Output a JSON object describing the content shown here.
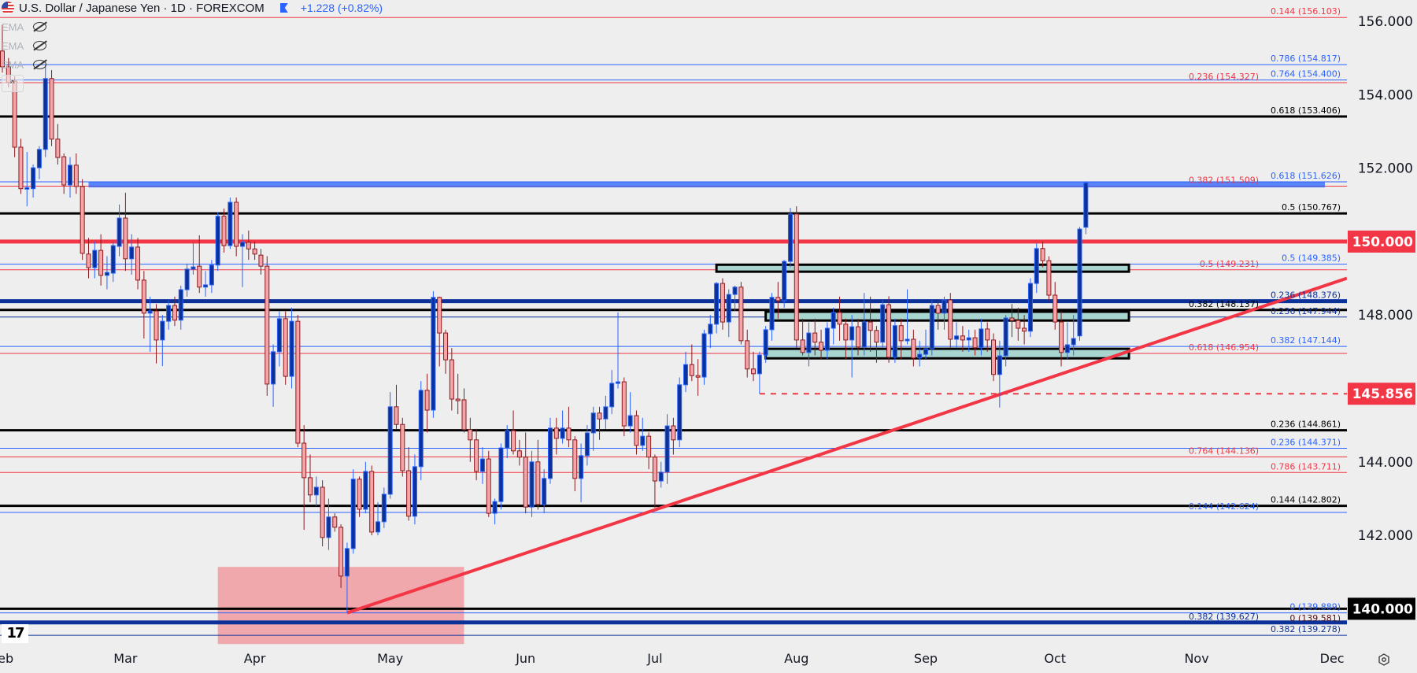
{
  "header": {
    "title": "U.S. Dollar / Japanese Yen · 1D · FOREXCOM",
    "change": "+1.228 (+0.82%)",
    "flag_icon": "us-jp-flag-icon",
    "marker_icon": "flag-marker-icon"
  },
  "legend": [
    {
      "label": "EMA",
      "icon": "eye-off-icon"
    },
    {
      "label": "EMA",
      "icon": "eye-off-icon"
    },
    {
      "label": "SMA",
      "icon": "eye-off-icon"
    }
  ],
  "collapse_label": "^",
  "logo_text": "TV",
  "chart_data": {
    "type": "candlestick",
    "title": "U.S. Dollar / Japanese Yen · 1D · FOREXCOM",
    "colors": {
      "up_fill": "#0c3299",
      "up_border": "#2962ff",
      "down_fill": "#f5a5a7",
      "down_border": "#8b1a1f",
      "background": "#eeeeee"
    },
    "ylim": [
      138.7,
      156.6
    ],
    "x_ticks": [
      "Feb",
      "Mar",
      "Apr",
      "May",
      "Jun",
      "Jul",
      "Aug",
      "Sep",
      "Oct",
      "Nov",
      "Dec"
    ],
    "y_ticks": [
      "156.000",
      "154.000",
      "152.000",
      "148.000",
      "144.000",
      "142.000"
    ],
    "price_tags": [
      {
        "value": "150.000",
        "color": "#f23645"
      },
      {
        "value": "145.856",
        "color": "#f23645"
      },
      {
        "value": "140.000",
        "color": "#000000"
      }
    ],
    "candles_ohlc": [
      [
        155.19,
        155.9,
        154.6,
        154.76
      ],
      [
        154.76,
        155.0,
        154.2,
        154.33
      ],
      [
        154.37,
        154.5,
        152.3,
        152.57
      ],
      [
        152.57,
        152.8,
        151.3,
        151.44
      ],
      [
        151.44,
        152.44,
        150.96,
        151.47
      ],
      [
        151.44,
        152.1,
        151.2,
        152.01
      ],
      [
        152.01,
        152.6,
        151.7,
        152.51
      ],
      [
        152.51,
        154.82,
        152.3,
        154.44
      ],
      [
        154.44,
        154.67,
        152.6,
        152.79
      ],
      [
        152.79,
        153.2,
        152.1,
        152.29
      ],
      [
        152.31,
        152.4,
        151.3,
        151.54
      ],
      [
        151.54,
        152.3,
        151.2,
        152.08
      ],
      [
        152.08,
        152.4,
        151.3,
        151.5
      ],
      [
        151.5,
        151.7,
        149.5,
        149.68
      ],
      [
        149.66,
        150.1,
        149.0,
        149.29
      ],
      [
        149.29,
        150.0,
        149.0,
        149.76
      ],
      [
        149.76,
        150.2,
        148.8,
        149.08
      ],
      [
        149.08,
        149.6,
        148.7,
        149.16
      ],
      [
        149.14,
        150.0,
        148.9,
        149.89
      ],
      [
        149.87,
        151.01,
        149.6,
        150.64
      ],
      [
        150.64,
        151.33,
        149.2,
        149.53
      ],
      [
        149.53,
        150.2,
        149.1,
        149.85
      ],
      [
        149.85,
        150.1,
        148.7,
        148.95
      ],
      [
        148.95,
        149.2,
        147.36,
        148.05
      ],
      [
        148.05,
        148.5,
        147.0,
        148.11
      ],
      [
        148.11,
        148.3,
        146.68,
        147.32
      ],
      [
        147.32,
        148.0,
        146.61,
        147.83
      ],
      [
        147.83,
        148.4,
        147.6,
        148.26
      ],
      [
        148.26,
        148.5,
        147.7,
        147.86
      ],
      [
        147.86,
        148.8,
        147.6,
        148.69
      ],
      [
        148.69,
        149.4,
        148.5,
        149.25
      ],
      [
        149.25,
        149.98,
        149.1,
        149.31
      ],
      [
        149.33,
        150.17,
        148.6,
        148.76
      ],
      [
        148.76,
        149.2,
        148.5,
        148.82
      ],
      [
        148.82,
        149.5,
        148.6,
        149.36
      ],
      [
        149.36,
        150.8,
        149.2,
        150.69
      ],
      [
        150.69,
        150.9,
        149.7,
        149.89
      ],
      [
        149.89,
        151.2,
        149.8,
        151.07
      ],
      [
        151.07,
        151.2,
        149.6,
        149.87
      ],
      [
        149.87,
        150.2,
        148.76,
        149.98
      ],
      [
        149.98,
        150.3,
        149.5,
        149.8
      ],
      [
        149.8,
        150.0,
        149.5,
        149.66
      ],
      [
        149.63,
        149.8,
        149.1,
        149.33
      ],
      [
        149.33,
        149.6,
        145.8,
        146.12
      ],
      [
        146.12,
        147.2,
        145.5,
        147.0
      ],
      [
        147.0,
        148.1,
        146.6,
        147.9
      ],
      [
        147.9,
        148.1,
        146.1,
        146.33
      ],
      [
        146.33,
        148.2,
        146.0,
        147.83
      ],
      [
        147.83,
        148.0,
        144.4,
        144.51
      ],
      [
        144.51,
        145.0,
        142.15,
        143.57
      ],
      [
        143.57,
        144.2,
        142.9,
        143.1
      ],
      [
        143.1,
        143.6,
        142.8,
        143.31
      ],
      [
        143.31,
        143.5,
        141.7,
        141.94
      ],
      [
        141.94,
        143.0,
        141.6,
        142.5
      ],
      [
        142.5,
        142.6,
        142.1,
        142.22
      ],
      [
        142.22,
        142.3,
        140.57,
        140.89
      ],
      [
        140.89,
        141.8,
        139.89,
        141.64
      ],
      [
        141.64,
        143.8,
        141.5,
        143.53
      ],
      [
        143.53,
        143.6,
        142.5,
        142.71
      ],
      [
        142.71,
        144.0,
        142.6,
        143.74
      ],
      [
        143.74,
        143.9,
        142.0,
        142.09
      ],
      [
        142.09,
        142.9,
        142.0,
        142.37
      ],
      [
        142.37,
        143.3,
        142.2,
        143.12
      ],
      [
        143.12,
        145.9,
        143.0,
        145.5
      ],
      [
        145.5,
        146.1,
        144.9,
        145.02
      ],
      [
        145.02,
        145.2,
        143.6,
        143.76
      ],
      [
        143.76,
        144.4,
        142.4,
        142.52
      ],
      [
        142.52,
        144.2,
        142.3,
        143.87
      ],
      [
        143.87,
        146.2,
        143.5,
        145.95
      ],
      [
        145.95,
        146.4,
        144.8,
        145.41
      ],
      [
        145.41,
        148.65,
        145.2,
        148.48
      ],
      [
        148.48,
        148.5,
        146.6,
        147.51
      ],
      [
        147.51,
        147.6,
        146.4,
        146.78
      ],
      [
        146.78,
        147.1,
        145.4,
        145.71
      ],
      [
        145.71,
        146.4,
        145.3,
        145.67
      ],
      [
        145.69,
        146.0,
        144.8,
        144.88
      ],
      [
        144.88,
        145.2,
        144.0,
        144.6
      ],
      [
        144.6,
        144.9,
        143.5,
        143.74
      ],
      [
        143.74,
        144.4,
        143.4,
        144.08
      ],
      [
        144.08,
        144.3,
        142.5,
        142.6
      ],
      [
        142.6,
        143.0,
        142.3,
        142.92
      ],
      [
        142.92,
        144.5,
        142.7,
        144.38
      ],
      [
        144.38,
        145.0,
        144.1,
        144.85
      ],
      [
        144.85,
        145.4,
        144.2,
        144.3
      ],
      [
        144.3,
        144.6,
        143.9,
        144.13
      ],
      [
        144.13,
        144.8,
        142.6,
        142.77
      ],
      [
        142.77,
        144.3,
        142.5,
        144.0
      ],
      [
        144.0,
        144.6,
        142.7,
        142.84
      ],
      [
        142.84,
        143.8,
        142.6,
        143.55
      ],
      [
        143.55,
        145.2,
        143.4,
        144.92
      ],
      [
        144.92,
        145.2,
        144.2,
        144.64
      ],
      [
        144.64,
        145.4,
        144.5,
        144.92
      ],
      [
        144.92,
        145.5,
        144.4,
        144.6
      ],
      [
        144.6,
        144.7,
        143.2,
        143.55
      ],
      [
        143.55,
        144.5,
        142.9,
        144.17
      ],
      [
        144.17,
        145.0,
        143.9,
        144.79
      ],
      [
        144.79,
        145.5,
        144.3,
        145.33
      ],
      [
        145.33,
        145.5,
        144.6,
        145.17
      ],
      [
        145.17,
        145.8,
        144.9,
        145.5
      ],
      [
        145.5,
        146.5,
        145.3,
        146.14
      ],
      [
        146.14,
        148.07,
        146.0,
        146.18
      ],
      [
        146.18,
        146.3,
        144.7,
        144.98
      ],
      [
        144.98,
        145.9,
        144.8,
        145.26
      ],
      [
        145.26,
        145.4,
        144.2,
        144.45
      ],
      [
        144.45,
        145.2,
        144.3,
        144.7
      ],
      [
        144.7,
        144.8,
        143.8,
        144.13
      ],
      [
        144.13,
        144.2,
        142.75,
        143.48
      ],
      [
        143.48,
        144.0,
        143.3,
        143.72
      ],
      [
        143.72,
        145.3,
        143.4,
        144.98
      ],
      [
        144.98,
        145.2,
        144.2,
        144.6
      ],
      [
        144.6,
        146.3,
        144.4,
        146.1
      ],
      [
        146.1,
        147.0,
        145.9,
        146.65
      ],
      [
        146.65,
        147.2,
        146.2,
        146.35
      ],
      [
        146.35,
        146.8,
        145.8,
        146.31
      ],
      [
        146.31,
        147.6,
        146.1,
        147.49
      ],
      [
        147.49,
        148.0,
        147.1,
        147.75
      ],
      [
        147.75,
        148.9,
        147.5,
        148.86
      ],
      [
        148.86,
        149.0,
        147.6,
        147.81
      ],
      [
        147.81,
        148.7,
        147.4,
        148.56
      ],
      [
        148.56,
        148.8,
        148.1,
        148.76
      ],
      [
        148.76,
        148.9,
        147.2,
        147.3
      ],
      [
        147.3,
        147.6,
        146.3,
        146.53
      ],
      [
        146.53,
        147.0,
        146.2,
        146.4
      ],
      [
        146.4,
        147.0,
        145.86,
        146.91
      ],
      [
        146.91,
        147.7,
        146.7,
        147.6
      ],
      [
        147.6,
        148.6,
        147.3,
        148.48
      ],
      [
        148.48,
        148.9,
        147.9,
        148.39
      ],
      [
        148.39,
        149.5,
        148.2,
        149.46
      ],
      [
        149.46,
        150.92,
        149.3,
        150.75
      ],
      [
        150.75,
        150.96,
        147.1,
        147.32
      ],
      [
        147.32,
        147.9,
        146.9,
        146.98
      ],
      [
        146.98,
        147.8,
        146.6,
        147.51
      ],
      [
        147.51,
        147.9,
        146.9,
        147.26
      ],
      [
        147.26,
        147.6,
        146.8,
        147.04
      ],
      [
        147.04,
        147.8,
        146.8,
        147.64
      ],
      [
        147.64,
        148.2,
        147.2,
        148.07
      ],
      [
        148.07,
        148.5,
        147.3,
        147.75
      ],
      [
        147.75,
        147.9,
        146.8,
        147.32
      ],
      [
        147.32,
        148.0,
        146.3,
        147.68
      ],
      [
        147.68,
        147.9,
        146.9,
        147.13
      ],
      [
        147.13,
        148.6,
        146.9,
        147.81
      ],
      [
        147.81,
        148.5,
        147.0,
        147.58
      ],
      [
        147.58,
        147.7,
        146.7,
        147.26
      ],
      [
        147.26,
        148.4,
        147.1,
        148.28
      ],
      [
        148.28,
        148.51,
        146.7,
        146.85
      ],
      [
        146.85,
        147.9,
        146.7,
        147.71
      ],
      [
        147.71,
        147.9,
        146.8,
        147.3
      ],
      [
        147.3,
        148.7,
        147.2,
        147.34
      ],
      [
        147.34,
        147.6,
        146.6,
        146.83
      ],
      [
        146.83,
        147.3,
        146.6,
        146.93
      ],
      [
        146.93,
        147.6,
        146.8,
        147.08
      ],
      [
        147.08,
        148.4,
        146.9,
        148.26
      ],
      [
        148.26,
        148.4,
        147.6,
        148.05
      ],
      [
        148.05,
        148.5,
        147.6,
        148.41
      ],
      [
        148.41,
        148.6,
        147.1,
        147.34
      ],
      [
        147.34,
        147.8,
        147.1,
        147.43
      ],
      [
        147.43,
        147.7,
        147.0,
        147.32
      ],
      [
        147.32,
        147.6,
        147.0,
        147.38
      ],
      [
        147.38,
        147.6,
        146.9,
        147.11
      ],
      [
        147.11,
        147.9,
        146.9,
        147.62
      ],
      [
        147.62,
        147.8,
        147.0,
        147.32
      ],
      [
        147.32,
        147.5,
        146.2,
        146.38
      ],
      [
        146.38,
        147.3,
        145.48,
        146.89
      ],
      [
        146.89,
        148.0,
        146.6,
        147.92
      ],
      [
        147.92,
        148.3,
        147.4,
        147.85
      ],
      [
        147.85,
        148.2,
        147.3,
        147.64
      ],
      [
        147.64,
        148.0,
        147.2,
        147.56
      ],
      [
        147.56,
        149.0,
        147.4,
        148.86
      ],
      [
        148.86,
        149.95,
        148.6,
        149.81
      ],
      [
        149.81,
        150.0,
        149.3,
        149.48
      ],
      [
        149.48,
        149.6,
        148.4,
        148.54
      ],
      [
        148.54,
        148.9,
        147.6,
        147.81
      ],
      [
        147.81,
        148.1,
        146.6,
        146.98
      ],
      [
        146.98,
        147.8,
        146.8,
        147.19
      ],
      [
        147.19,
        148.0,
        146.9,
        147.36
      ],
      [
        147.43,
        150.4,
        147.3,
        150.34
      ],
      [
        150.39,
        151.62,
        150.2,
        151.6
      ]
    ],
    "fib_levels": [
      {
        "price": 156.103,
        "label": "0.144 (156.103)",
        "color": "#f23645",
        "style": "thin"
      },
      {
        "price": 154.817,
        "label": "0.786 (154.817)",
        "color": "#2962ff",
        "style": "thin"
      },
      {
        "price": 154.4,
        "label": "0.764 (154.400)",
        "color": "#2962ff",
        "style": "thin"
      },
      {
        "price": 154.327,
        "label": "0.236 (154.327)",
        "color": "#f23645",
        "style": "thin"
      },
      {
        "price": 153.406,
        "label": "0.618 (153.406)",
        "color": "#000000",
        "style": "thick"
      },
      {
        "price": 151.626,
        "label": "0.618 (151.626)",
        "color": "#2962ff",
        "style": "thin"
      },
      {
        "price": 151.509,
        "label": "0.382 (151.509)",
        "color": "#f23645",
        "style": "thin"
      },
      {
        "price": 150.767,
        "label": "0.5 (150.767)",
        "color": "#000000",
        "style": "thick"
      },
      {
        "price": 149.385,
        "label": "0.5 (149.385)",
        "color": "#2962ff",
        "style": "thin"
      },
      {
        "price": 149.231,
        "label": "0.5 (149.231)",
        "color": "#f23645",
        "style": "thin"
      },
      {
        "price": 148.376,
        "label": "0.236 (148.376)",
        "color": "#0c3299",
        "style": "heavy"
      },
      {
        "price": 148.137,
        "label": "0.382 (148.137)",
        "color": "#000000",
        "style": "thick"
      },
      {
        "price": 147.944,
        "label": "0.236 (147.944)",
        "color": "#0c3299",
        "style": "thin"
      },
      {
        "price": 147.144,
        "label": "0.382 (147.144)",
        "color": "#2962ff",
        "style": "thin"
      },
      {
        "price": 146.954,
        "label": "0.618 (146.954)",
        "color": "#f23645",
        "style": "thin"
      },
      {
        "price": 144.861,
        "label": "0.236 (144.861)",
        "color": "#000000",
        "style": "thick"
      },
      {
        "price": 144.371,
        "label": "0.236 (144.371)",
        "color": "#2962ff",
        "style": "thin"
      },
      {
        "price": 144.136,
        "label": "0.764 (144.136)",
        "color": "#f23645",
        "style": "thin"
      },
      {
        "price": 143.711,
        "label": "0.786 (143.711)",
        "color": "#f23645",
        "style": "thin"
      },
      {
        "price": 142.802,
        "label": "0.144 (142.802)",
        "color": "#000000",
        "style": "thick"
      },
      {
        "price": 142.624,
        "label": "0.144 (142.624)",
        "color": "#2962ff",
        "style": "thin"
      },
      {
        "price": 139.889,
        "label": "0 (139.889)",
        "color": "#2962ff",
        "style": "thin"
      },
      {
        "price": 139.627,
        "label": "0.382 (139.627)",
        "color": "#0c3299",
        "style": "heavy"
      },
      {
        "price": 139.581,
        "label": "0 (139.581)",
        "color": "#5a1010",
        "style": "none"
      },
      {
        "price": 139.278,
        "label": "0.382 (139.278)",
        "color": "#0c3299",
        "style": "thin"
      }
    ],
    "horizontal_lines": [
      {
        "price": 150.0,
        "color": "#f23645",
        "style": "heavy"
      },
      {
        "price": 140.0,
        "color": "#000000",
        "style": "thick"
      }
    ],
    "dashed_line": {
      "price": 145.856,
      "from_bar": 123,
      "color": "#f23645"
    },
    "resistance_band": {
      "price": 151.55,
      "from_bar": 14,
      "color": "#2962ff"
    },
    "trendline": {
      "points": [
        [
          56,
          139.889
        ],
        [
          218.4,
          149.0
        ]
      ],
      "color": "#f23645"
    },
    "zones": [
      {
        "from_bar": 116,
        "to_bar": 183,
        "top": 149.37,
        "bottom": 149.18,
        "color": "#a8d5cf"
      },
      {
        "from_bar": 124,
        "to_bar": 183,
        "top": 148.09,
        "bottom": 147.85,
        "color": "#a8d5cf"
      },
      {
        "from_bar": 124,
        "to_bar": 183,
        "top": 147.08,
        "bottom": 146.82,
        "color": "#a8d5cf"
      }
    ],
    "support_zone": {
      "from_bar": 35,
      "to_bar": 75,
      "top": 141.14,
      "bottom": 139.04,
      "color": "#f0a3a8"
    }
  }
}
